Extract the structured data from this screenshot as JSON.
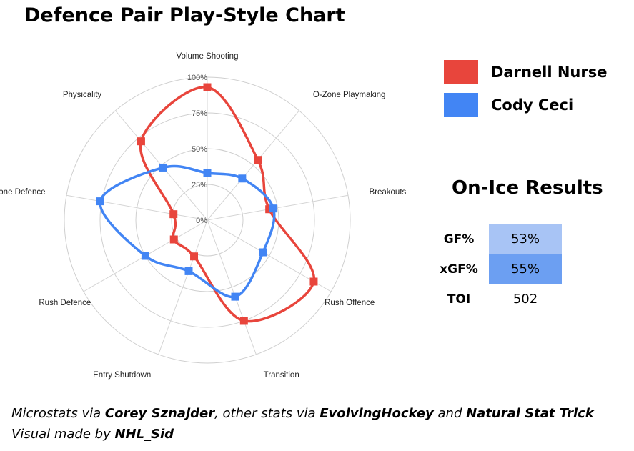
{
  "title": "Defence Pair Play-Style Chart",
  "chart_data": {
    "type": "radar",
    "axes": [
      "Volume Shooting",
      "O-Zone Playmaking",
      "Breakouts",
      "Rush Offence",
      "Transition",
      "Entry Shutdown",
      "Rush Defence",
      "In-Zone Defence",
      "Physicality"
    ],
    "tick_labels": [
      "0%",
      "25%",
      "50%",
      "75%",
      "100%"
    ],
    "rlim": [
      0,
      100
    ],
    "grid": true,
    "legend_position": "right",
    "series": [
      {
        "name": "Darnell Nurse",
        "color": "#e8453c",
        "values": [
          93,
          55,
          44,
          86,
          75,
          27,
          27,
          24,
          72
        ]
      },
      {
        "name": "Cody Ceci",
        "color": "#4285f4",
        "values": [
          33,
          38,
          47,
          45,
          57,
          38,
          50,
          76,
          48
        ]
      }
    ]
  },
  "legend": [
    {
      "label": "Darnell Nurse",
      "color": "#e8453c"
    },
    {
      "label": "Cody Ceci",
      "color": "#4285f4"
    }
  ],
  "on_ice": {
    "title": "On-Ice Results",
    "rows": [
      {
        "label": "GF%",
        "value": "53%",
        "color": "#a8c4f5"
      },
      {
        "label": "xGF%",
        "value": "55%",
        "color": "#6c9ff2"
      },
      {
        "label": "TOI",
        "value": "502",
        "color": "#ffffff"
      }
    ]
  },
  "footer": {
    "line1_prefix": "Microstats via ",
    "line1_source1": "Corey Sznajder",
    "line1_mid": ", other stats via ",
    "line1_source2": "EvolvingHockey",
    "line1_and": " and ",
    "line1_source3": "Natural Stat Trick",
    "line2_prefix": "Visual made by ",
    "line2_author": "NHL_Sid"
  }
}
